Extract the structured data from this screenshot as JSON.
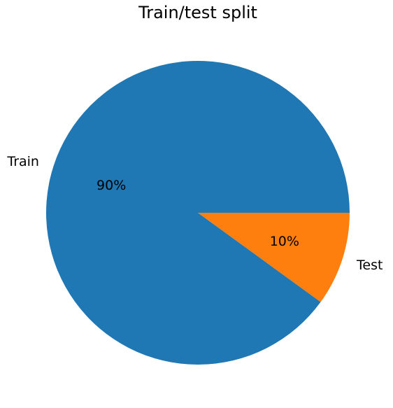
{
  "chart_data": {
    "type": "pie",
    "title": "Train/test split",
    "categories": [
      "Train",
      "Test"
    ],
    "values": [
      90,
      10
    ],
    "value_labels": [
      "90%",
      "10%"
    ],
    "colors": [
      "#1f77b4",
      "#ff7f0e"
    ],
    "start_angle_deg": 0,
    "direction": "counterclockwise",
    "legend": "none"
  }
}
